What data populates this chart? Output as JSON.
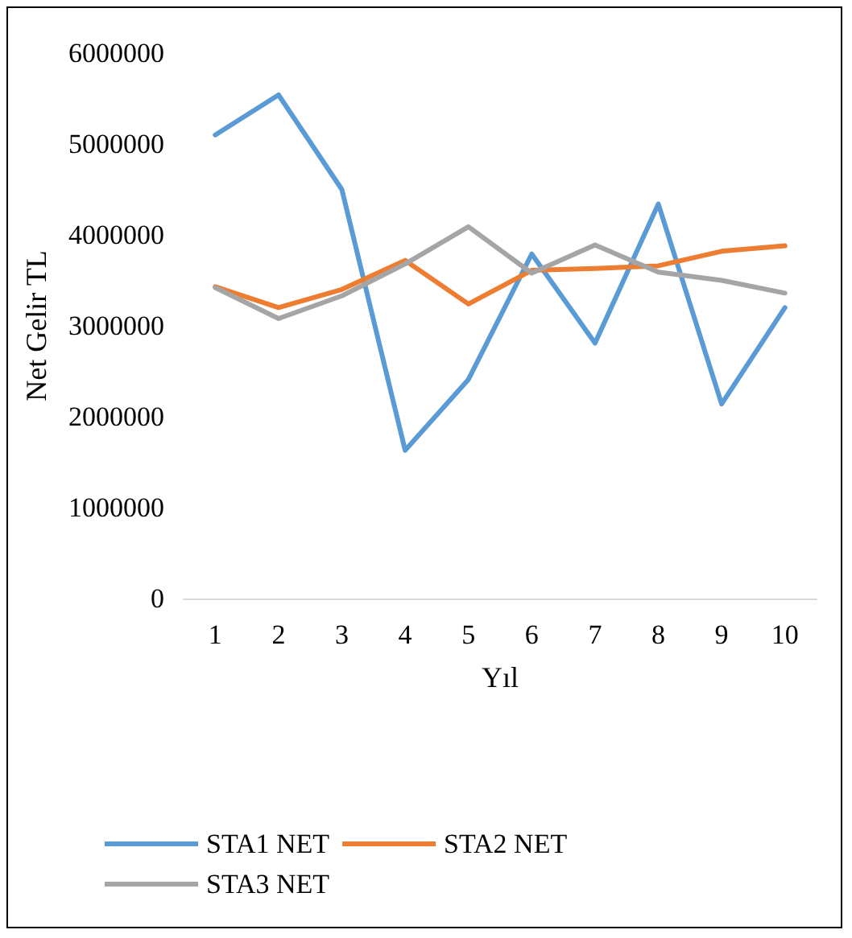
{
  "chart_data": {
    "type": "line",
    "xlabel": "Yıl",
    "ylabel": "Net Gelir TL",
    "categories": [
      "1",
      "2",
      "3",
      "4",
      "5",
      "6",
      "7",
      "8",
      "9",
      "10"
    ],
    "series": [
      {
        "name": "STA1 NET",
        "color": "#5b9bd5",
        "values": [
          5100000,
          5540000,
          4500000,
          1630000,
          2410000,
          3790000,
          2810000,
          4340000,
          2140000,
          3200000
        ]
      },
      {
        "name": "STA2 NET",
        "color": "#ed7d31",
        "values": [
          3430000,
          3200000,
          3400000,
          3720000,
          3240000,
          3610000,
          3630000,
          3660000,
          3820000,
          3880000
        ]
      },
      {
        "name": "STA3 NET",
        "color": "#a5a5a5",
        "values": [
          3420000,
          3080000,
          3330000,
          3680000,
          4090000,
          3580000,
          3890000,
          3590000,
          3500000,
          3360000
        ]
      }
    ],
    "ylim": [
      0,
      6000000
    ],
    "yticks": [
      0,
      1000000,
      2000000,
      3000000,
      4000000,
      5000000,
      6000000
    ],
    "grid": false,
    "legend": "bottom",
    "marker": "none",
    "line_style": "solid"
  }
}
